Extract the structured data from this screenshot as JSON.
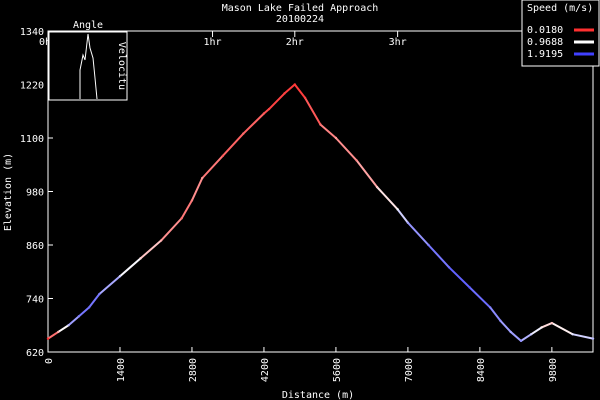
{
  "chart_data": {
    "type": "line",
    "title": "Mason Lake Failed Approach",
    "subtitle": "20100224",
    "xlabel": "Distance (m)",
    "ylabel": "Elevation (m)",
    "xlim": [
      0,
      10600
    ],
    "ylim": [
      620,
      1340
    ],
    "x_ticks": [
      "0",
      "1400",
      "2800",
      "4200",
      "5600",
      "7000",
      "8400",
      "9800"
    ],
    "y_ticks": [
      "620",
      "740",
      "860",
      "980",
      "1100",
      "1220",
      "1340"
    ],
    "time_ticks": [
      {
        "label": "0hr",
        "x": 0
      },
      {
        "label": "1hr",
        "x": 3200
      },
      {
        "label": "2hr",
        "x": 4800
      },
      {
        "label": "3hr",
        "x": 6800
      }
    ],
    "grid": false,
    "legend": {
      "title": "Speed (m/s)",
      "placement": "top-right",
      "entries": [
        {
          "label": "0.0180",
          "color": "#ff3030"
        },
        {
          "label": "0.9688",
          "color": "#ffffff"
        },
        {
          "label": "1.9195",
          "color": "#4040ff"
        }
      ]
    },
    "inset": {
      "title": "Angle",
      "side_label": "Velocitu"
    },
    "series": [
      {
        "x": [
          0,
          200,
          400,
          600,
          800,
          1000,
          1400,
          1800,
          2200,
          2600,
          2800,
          3000,
          3400,
          3800,
          4200,
          4300,
          4600,
          4800,
          5000,
          5300,
          5600,
          6000,
          6400,
          6800,
          7000,
          7400,
          7800,
          8200,
          8600,
          8800,
          9000,
          9200,
          9400,
          9600,
          9800,
          10200,
          10600
        ],
        "y": [
          650,
          665,
          680,
          700,
          720,
          750,
          790,
          830,
          870,
          920,
          960,
          1010,
          1060,
          1110,
          1155,
          1165,
          1200,
          1220,
          1190,
          1130,
          1100,
          1050,
          990,
          940,
          910,
          860,
          810,
          765,
          720,
          690,
          665,
          645,
          660,
          675,
          685,
          660,
          650
        ],
        "speed": [
          0.02,
          0.6,
          1.3,
          1.6,
          1.7,
          1.6,
          1.2,
          0.8,
          0.6,
          0.3,
          0.4,
          0.5,
          0.2,
          0.3,
          0.2,
          0.1,
          0.1,
          0.05,
          0.1,
          0.3,
          0.5,
          0.4,
          0.7,
          1.0,
          1.4,
          1.6,
          1.7,
          1.8,
          1.6,
          1.5,
          1.4,
          1.5,
          1.2,
          0.9,
          0.7,
          1.1,
          1.3
        ]
      }
    ]
  }
}
